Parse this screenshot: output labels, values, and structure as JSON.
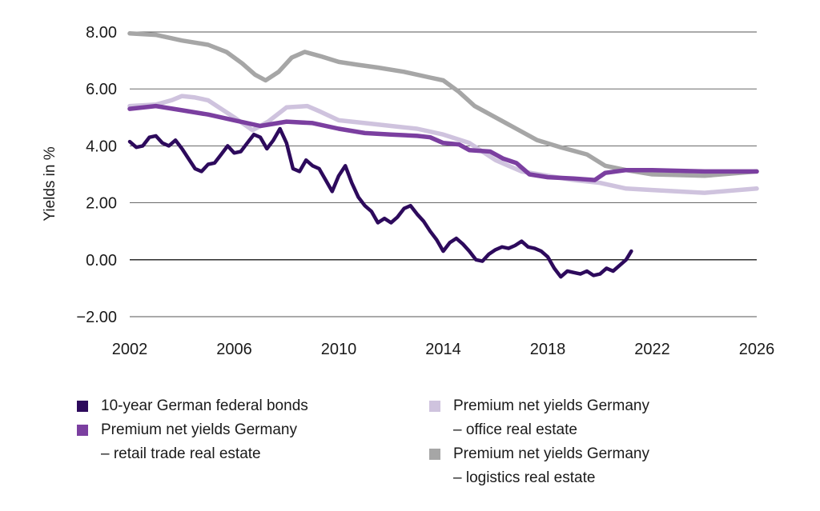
{
  "chart_data": {
    "type": "line",
    "xlabel": "",
    "ylabel": "Yields in %",
    "xlim": [
      2002,
      2026
    ],
    "ylim": [
      -2,
      8
    ],
    "x_ticks": [
      "2002",
      "2006",
      "2010",
      "2014",
      "2018",
      "2022",
      "2026"
    ],
    "y_ticks": [
      "8.00",
      "6.00",
      "4.00",
      "2.00",
      "0.00",
      "−2.00"
    ],
    "grid": "horizontal",
    "legend_position": "bottom",
    "series": [
      {
        "name": "10-year German federal bonds",
        "color": "#2d0a5c",
        "x": [
          2002.0,
          2002.25,
          2002.5,
          2002.75,
          2003.0,
          2003.25,
          2003.5,
          2003.75,
          2004.0,
          2004.25,
          2004.5,
          2004.75,
          2005.0,
          2005.25,
          2005.5,
          2005.75,
          2006.0,
          2006.25,
          2006.5,
          2006.75,
          2007.0,
          2007.25,
          2007.5,
          2007.75,
          2008.0,
          2008.25,
          2008.5,
          2008.75,
          2009.0,
          2009.25,
          2009.5,
          2009.75,
          2010.0,
          2010.25,
          2010.5,
          2010.75,
          2011.0,
          2011.25,
          2011.5,
          2011.75,
          2012.0,
          2012.25,
          2012.5,
          2012.75,
          2013.0,
          2013.25,
          2013.5,
          2013.75,
          2014.0,
          2014.25,
          2014.5,
          2014.75,
          2015.0,
          2015.25,
          2015.5,
          2015.75,
          2016.0,
          2016.25,
          2016.5,
          2016.75,
          2017.0,
          2017.25,
          2017.5,
          2017.75,
          2018.0,
          2018.25,
          2018.5,
          2018.75,
          2019.0,
          2019.25,
          2019.5,
          2019.75,
          2020.0,
          2020.25,
          2020.5,
          2020.75,
          2021.0,
          2021.2
        ],
        "values": [
          4.15,
          3.95,
          4.0,
          4.3,
          4.35,
          4.1,
          4.0,
          4.2,
          3.9,
          3.55,
          3.2,
          3.1,
          3.35,
          3.4,
          3.7,
          4.0,
          3.75,
          3.8,
          4.1,
          4.4,
          4.3,
          3.9,
          4.2,
          4.6,
          4.1,
          3.2,
          3.1,
          3.5,
          3.3,
          3.2,
          2.8,
          2.4,
          2.95,
          3.3,
          2.7,
          2.2,
          1.9,
          1.7,
          1.3,
          1.45,
          1.3,
          1.5,
          1.8,
          1.9,
          1.6,
          1.35,
          1.0,
          0.7,
          0.3,
          0.6,
          0.75,
          0.55,
          0.3,
          0.0,
          -0.05,
          0.2,
          0.35,
          0.45,
          0.4,
          0.5,
          0.65,
          0.45,
          0.4,
          0.3,
          0.1,
          -0.3,
          -0.6,
          -0.4,
          -0.45,
          -0.5,
          -0.4,
          -0.55,
          -0.5,
          -0.3,
          -0.4,
          -0.2,
          0.0,
          0.3
        ]
      },
      {
        "name": "Premium net yields Germany – retail trade real estate",
        "color": "#7b3fa0",
        "x": [
          2002.0,
          2003.0,
          2004.0,
          2005.0,
          2006.0,
          2007.0,
          2008.0,
          2009.0,
          2010.0,
          2011.0,
          2012.0,
          2013.0,
          2013.5,
          2014.0,
          2014.6,
          2015.0,
          2015.8,
          2016.3,
          2016.8,
          2017.3,
          2018.0,
          2019.0,
          2019.8,
          2020.2,
          2021.0,
          2022.0,
          2024.0,
          2026.0
        ],
        "values": [
          5.3,
          5.4,
          5.25,
          5.1,
          4.9,
          4.7,
          4.85,
          4.8,
          4.6,
          4.45,
          4.4,
          4.35,
          4.3,
          4.1,
          4.05,
          3.85,
          3.8,
          3.55,
          3.4,
          3.0,
          2.9,
          2.85,
          2.8,
          3.05,
          3.15,
          3.15,
          3.1,
          3.1
        ]
      },
      {
        "name": "Premium net yields Germany – office real estate",
        "color": "#cfc3de",
        "x": [
          2002.0,
          2003.0,
          2003.6,
          2004.0,
          2004.5,
          2005.0,
          2006.0,
          2006.7,
          2007.3,
          2008.0,
          2008.8,
          2009.3,
          2010.0,
          2011.0,
          2012.0,
          2013.0,
          2014.0,
          2015.0,
          2016.0,
          2017.0,
          2018.0,
          2019.0,
          2020.0,
          2021.0,
          2022.0,
          2024.0,
          2026.0
        ],
        "values": [
          5.4,
          5.45,
          5.6,
          5.75,
          5.7,
          5.6,
          5.0,
          4.55,
          4.85,
          5.35,
          5.4,
          5.2,
          4.9,
          4.8,
          4.7,
          4.6,
          4.4,
          4.1,
          3.5,
          3.1,
          2.95,
          2.8,
          2.7,
          2.5,
          2.45,
          2.35,
          2.5
        ]
      },
      {
        "name": "Premium net yields Germany – logistics real estate",
        "color": "#a6a6a6",
        "x": [
          2002.0,
          2003.0,
          2004.0,
          2005.0,
          2005.7,
          2006.3,
          2006.8,
          2007.2,
          2007.7,
          2008.2,
          2008.7,
          2009.3,
          2010.0,
          2010.7,
          2011.5,
          2012.5,
          2013.5,
          2014.0,
          2014.6,
          2015.2,
          2016.0,
          2016.8,
          2017.6,
          2018.5,
          2019.5,
          2020.2,
          2021.0,
          2022.0,
          2024.0,
          2026.0
        ],
        "values": [
          7.95,
          7.9,
          7.7,
          7.55,
          7.3,
          6.9,
          6.5,
          6.3,
          6.6,
          7.1,
          7.3,
          7.15,
          6.95,
          6.85,
          6.75,
          6.6,
          6.4,
          6.3,
          5.9,
          5.4,
          5.0,
          4.6,
          4.2,
          3.95,
          3.7,
          3.3,
          3.15,
          3.0,
          2.95,
          3.1
        ]
      }
    ]
  },
  "legend": {
    "left": [
      {
        "lines": [
          "10-year German federal bonds"
        ],
        "color": "#2d0a5c"
      },
      {
        "lines": [
          "Premium net yields Germany",
          "– retail trade real estate"
        ],
        "color": "#7b3fa0"
      }
    ],
    "right": [
      {
        "lines": [
          "Premium net yields Germany",
          "– office real estate"
        ],
        "color": "#cfc3de"
      },
      {
        "lines": [
          "Premium net yields Germany",
          "– logistics real estate"
        ],
        "color": "#a6a6a6"
      }
    ]
  }
}
